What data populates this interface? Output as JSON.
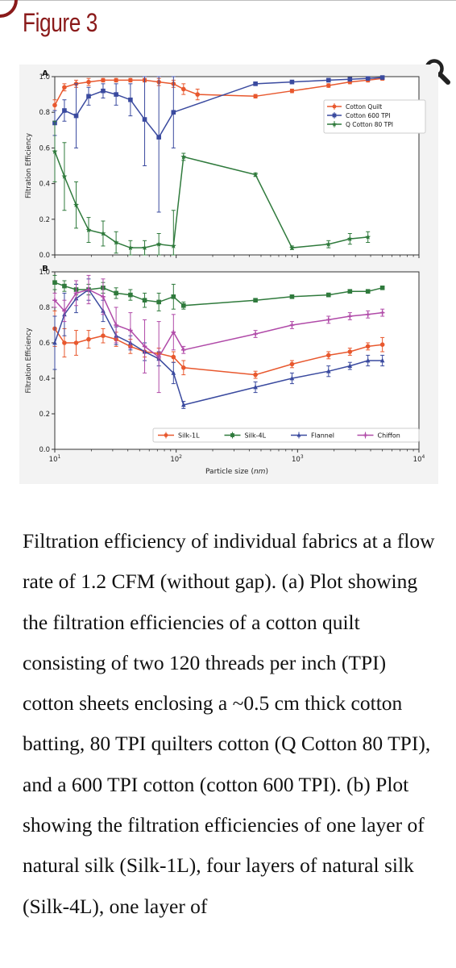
{
  "page": {
    "figure_title": "Figure 3",
    "zoom_icon": "magnifier-icon",
    "accent_color": "#8a1a1a"
  },
  "caption": "Filtration efficiency of individual fabrics at a flow rate of 1.2 CFM (without gap). (a) Plot showing the filtration efficiencies of a cotton quilt consisting of two 120 threads per inch (TPI) cotton sheets enclosing a ~0.5 cm thick cotton batting, 80 TPI quilters cotton (Q Cotton 80 TPI), and a 600 TPI cotton (cotton 600 TPI). (b) Plot showing the filtration efficiencies of one layer of natural silk (Silk-1L), four layers of natural silk (Silk-4L), one layer of",
  "chart_data": [
    {
      "type": "line",
      "panel_label": "A",
      "ylabel": "Filtration Efficiency",
      "xlabel": "",
      "x_scale": "log",
      "xlim": [
        10,
        10000
      ],
      "ylim": [
        0,
        1.0
      ],
      "yticks": [
        "0.0",
        "0.2",
        "0.4",
        "0.6",
        "0.8",
        "1.0"
      ],
      "legend_position": "right",
      "series": [
        {
          "name": "Cotton Quilt",
          "color": "#e8582e",
          "marker": "circle",
          "x": [
            10,
            12,
            15,
            19,
            25,
            32,
            42,
            55,
            72,
            95,
            115,
            150,
            450,
            900,
            1800,
            2700,
            3800,
            5000
          ],
          "y": [
            0.84,
            0.94,
            0.96,
            0.97,
            0.98,
            0.98,
            0.98,
            0.98,
            0.97,
            0.96,
            0.93,
            0.9,
            0.89,
            0.92,
            0.95,
            0.97,
            0.98,
            0.99
          ],
          "err": [
            0.03,
            0.02,
            0.02,
            0.02,
            0.01,
            0.01,
            0.01,
            0.01,
            0.02,
            0.02,
            0.03,
            0.03,
            0.01,
            0.01,
            0.01,
            0.01,
            0.01,
            0.01
          ]
        },
        {
          "name": "Cotton 600 TPI",
          "color": "#3a4a9f",
          "marker": "square",
          "x": [
            10,
            12,
            15,
            19,
            25,
            32,
            42,
            55,
            72,
            95,
            450,
            900,
            1800,
            2700,
            3800,
            5000
          ],
          "y": [
            0.74,
            0.81,
            0.78,
            0.89,
            0.92,
            0.9,
            0.87,
            0.76,
            0.66,
            0.8,
            0.96,
            0.97,
            0.98,
            0.985,
            0.99,
            0.995
          ],
          "err": [
            0.07,
            0.06,
            0.18,
            0.05,
            0.04,
            0.06,
            0.09,
            0.26,
            0.42,
            0.2,
            0.01,
            0.01,
            0.01,
            0.01,
            0.005,
            0.005
          ]
        },
        {
          "name": "Q Cotton 80 TPI",
          "color": "#2f7a3c",
          "marker": "star",
          "x": [
            10,
            12,
            15,
            19,
            25,
            32,
            42,
            55,
            72,
            95,
            115,
            450,
            900,
            1800,
            2700,
            3800
          ],
          "y": [
            0.58,
            0.44,
            0.28,
            0.14,
            0.12,
            0.07,
            0.04,
            0.04,
            0.06,
            0.05,
            0.55,
            0.45,
            0.04,
            0.06,
            0.09,
            0.1
          ],
          "err": [
            0.17,
            0.19,
            0.13,
            0.07,
            0.07,
            0.06,
            0.04,
            0.04,
            0.06,
            0.2,
            0.02,
            0.01,
            0.01,
            0.02,
            0.03,
            0.03
          ]
        }
      ]
    },
    {
      "type": "line",
      "panel_label": "B",
      "ylabel": "Filtration Efficiency",
      "xlabel": "Particle size (nm)",
      "x_scale": "log",
      "xlim": [
        10,
        10000
      ],
      "ylim": [
        0,
        1.0
      ],
      "yticks": [
        "0.0",
        "0.2",
        "0.4",
        "0.6",
        "0.8",
        "1.0"
      ],
      "xticks": [
        {
          "base": "10",
          "exp": "1"
        },
        {
          "base": "10",
          "exp": "2"
        },
        {
          "base": "10",
          "exp": "3"
        },
        {
          "base": "10",
          "exp": "4"
        }
      ],
      "legend_position": "bottom",
      "series": [
        {
          "name": "Silk-1L",
          "color": "#e8582e",
          "marker": "circle",
          "x": [
            10,
            12,
            15,
            19,
            25,
            32,
            42,
            55,
            72,
            95,
            115,
            450,
            900,
            1800,
            2700,
            3800,
            5000
          ],
          "y": [
            0.68,
            0.6,
            0.6,
            0.62,
            0.64,
            0.62,
            0.58,
            0.55,
            0.54,
            0.52,
            0.46,
            0.42,
            0.48,
            0.53,
            0.55,
            0.58,
            0.59
          ],
          "err": [
            0.1,
            0.08,
            0.07,
            0.05,
            0.04,
            0.04,
            0.04,
            0.03,
            0.03,
            0.03,
            0.04,
            0.02,
            0.02,
            0.02,
            0.02,
            0.02,
            0.04
          ]
        },
        {
          "name": "Silk-4L",
          "color": "#2f7a3c",
          "marker": "square",
          "x": [
            10,
            12,
            15,
            19,
            25,
            32,
            42,
            55,
            72,
            95,
            115,
            450,
            900,
            1800,
            2700,
            3800,
            5000
          ],
          "y": [
            0.94,
            0.92,
            0.9,
            0.9,
            0.91,
            0.88,
            0.87,
            0.84,
            0.83,
            0.86,
            0.81,
            0.84,
            0.86,
            0.87,
            0.89,
            0.89,
            0.91
          ],
          "err": [
            0.04,
            0.03,
            0.03,
            0.03,
            0.03,
            0.03,
            0.03,
            0.04,
            0.05,
            0.07,
            0.02,
            0.01,
            0.01,
            0.01,
            0.01,
            0.01,
            0.01
          ]
        },
        {
          "name": "Flannel",
          "color": "#3a4a9f",
          "marker": "triangle",
          "x": [
            10,
            12,
            15,
            19,
            25,
            32,
            42,
            55,
            72,
            95,
            115,
            450,
            900,
            1800,
            2700,
            3800,
            5000
          ],
          "y": [
            0.6,
            0.76,
            0.85,
            0.9,
            0.78,
            0.64,
            0.6,
            0.55,
            0.51,
            0.43,
            0.25,
            0.35,
            0.4,
            0.44,
            0.47,
            0.5,
            0.5
          ],
          "err": [
            0.15,
            0.12,
            0.08,
            0.06,
            0.06,
            0.05,
            0.04,
            0.05,
            0.04,
            0.06,
            0.02,
            0.03,
            0.03,
            0.03,
            0.02,
            0.03,
            0.03
          ]
        },
        {
          "name": "Chiffon",
          "color": "#b04aa8",
          "marker": "cross",
          "x": [
            10,
            12,
            15,
            19,
            25,
            32,
            42,
            55,
            72,
            95,
            115,
            450,
            900,
            1800,
            2700,
            3800,
            5000
          ],
          "y": [
            0.84,
            0.78,
            0.88,
            0.9,
            0.86,
            0.7,
            0.67,
            0.58,
            0.52,
            0.66,
            0.56,
            0.65,
            0.7,
            0.73,
            0.75,
            0.76,
            0.77
          ],
          "err": [
            0.04,
            0.06,
            0.07,
            0.08,
            0.1,
            0.1,
            0.1,
            0.15,
            0.2,
            0.1,
            0.02,
            0.02,
            0.02,
            0.02,
            0.02,
            0.02,
            0.02
          ]
        }
      ]
    }
  ]
}
